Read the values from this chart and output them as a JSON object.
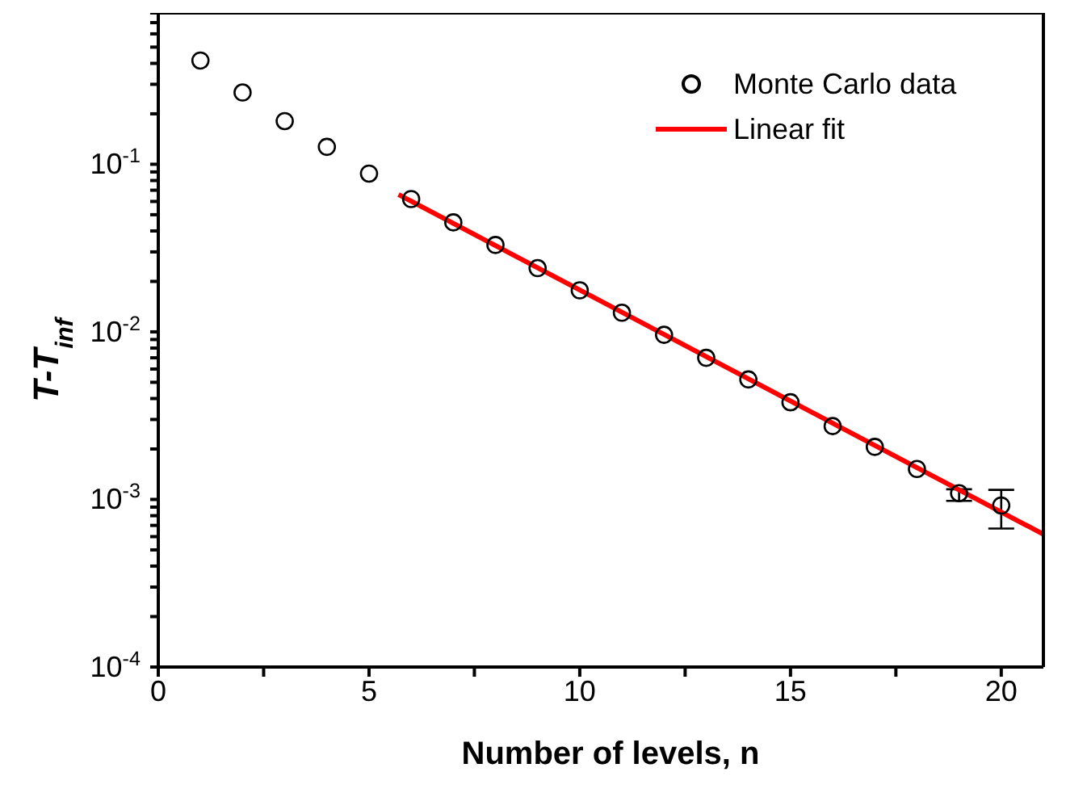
{
  "chart_data": {
    "type": "scatter",
    "xlabel": "Number of levels, n",
    "ylabel": "T-T$_{inf}$",
    "log": "y",
    "xlim": [
      0,
      21
    ],
    "xticks": [
      0,
      {
        "value": 2.5,
        "label": null
      },
      5,
      {
        "value": 7.5,
        "label": null
      },
      10,
      {
        "value": 12.5,
        "label": null
      },
      15,
      {
        "value": 17.5,
        "label": null
      },
      20
    ],
    "ylim": [
      0.0001,
      0.8
    ],
    "yticks": [
      {
        "value": 0.0001,
        "label": "10$^{-4}$"
      },
      {
        "value": 0.0002,
        "label": null
      },
      {
        "value": 0.0003,
        "label": null
      },
      {
        "value": 0.0004,
        "label": null
      },
      {
        "value": 0.0005,
        "label": null
      },
      {
        "value": 0.0006,
        "label": null
      },
      {
        "value": 0.0007,
        "label": null
      },
      {
        "value": 0.0008,
        "label": null
      },
      {
        "value": 0.0009,
        "label": null
      },
      {
        "value": 0.001,
        "label": "10$^{-3}$"
      },
      {
        "value": 0.002,
        "label": null
      },
      {
        "value": 0.003,
        "label": null
      },
      {
        "value": 0.004,
        "label": null
      },
      {
        "value": 0.005,
        "label": null
      },
      {
        "value": 0.006,
        "label": null
      },
      {
        "value": 0.007,
        "label": null
      },
      {
        "value": 0.008,
        "label": null
      },
      {
        "value": 0.009,
        "label": null
      },
      {
        "value": 0.01,
        "label": "10$^{-2}$"
      },
      {
        "value": 0.02,
        "label": null
      },
      {
        "value": 0.03,
        "label": null
      },
      {
        "value": 0.04,
        "label": null
      },
      {
        "value": 0.05,
        "label": null
      },
      {
        "value": 0.06,
        "label": null
      },
      {
        "value": 0.07,
        "label": null
      },
      {
        "value": 0.08,
        "label": null
      },
      {
        "value": 0.09,
        "label": null
      },
      {
        "value": 0.1,
        "label": "10$^{-1}$"
      },
      {
        "value": 0.2,
        "label": null
      },
      {
        "value": 0.3,
        "label": null
      },
      {
        "value": 0.4,
        "label": null
      },
      {
        "value": 0.5,
        "label": null
      },
      {
        "value": 0.6,
        "label": null
      },
      {
        "value": 0.7,
        "label": null
      },
      {
        "value": 0.8,
        "label": null
      }
    ],
    "legend": "top right",
    "series": [
      {
        "name": "Monte Carlo data",
        "color": "#000000",
        "marker": "circle",
        "x": [
          1,
          2,
          3,
          4,
          5,
          6,
          7,
          8,
          9,
          10,
          11,
          12,
          13,
          14,
          15,
          16,
          17,
          18,
          19,
          20
        ],
        "values": [
          0.416,
          0.268,
          0.181,
          0.127,
          0.088,
          0.062,
          0.045,
          0.033,
          0.024,
          0.0177,
          0.013,
          0.0096,
          0.007,
          0.0052,
          0.0038,
          0.00274,
          0.00206,
          0.00152,
          0.00109,
          0.00092
        ],
        "errors": [
          null,
          null,
          null,
          null,
          null,
          null,
          null,
          null,
          null,
          null,
          null,
          null,
          null,
          null,
          null,
          null,
          null,
          null,
          [
            0.00098,
            0.00115
          ],
          [
            0.00067,
            0.00114
          ]
        ]
      },
      {
        "name": "Linear fit",
        "type": "line",
        "color": "#ff0000",
        "marker": "none",
        "line_style": "solid",
        "x": [
          5.7,
          21
        ],
        "values": [
          0.066,
          0.00062
        ]
      }
    ]
  }
}
